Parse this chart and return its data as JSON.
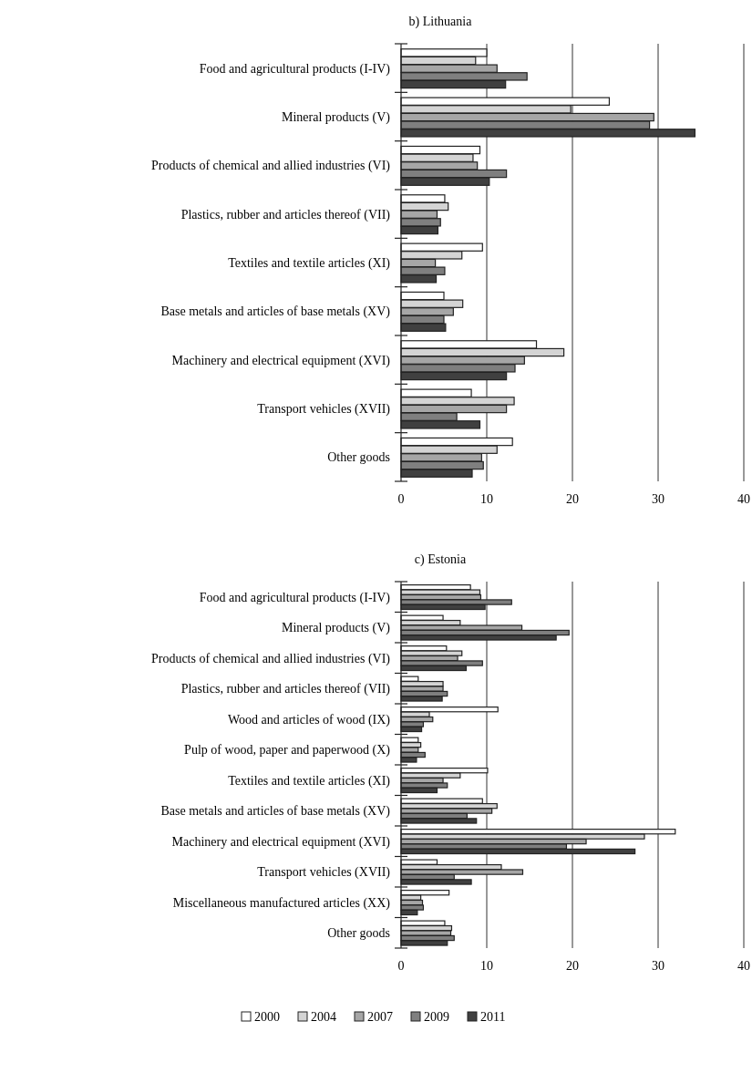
{
  "chart_data": [
    {
      "type": "bar",
      "orientation": "horizontal",
      "title": "b) Lithuania",
      "categories": [
        "Food and agricultural products (I-IV)",
        "Mineral products (V)",
        "Products of chemical and allied industries (VI)",
        "Plastics, rubber and articles thereof (VII)",
        "Textiles and textile articles (XI)",
        "Base metals and articles of base metals (XV)",
        "Machinery and electrical equipment (XVI)",
        "Transport vehicles (XVII)",
        "Other goods"
      ],
      "xlim": [
        0,
        40
      ],
      "xticks": [
        0,
        10,
        20,
        30,
        40
      ],
      "grid": "x",
      "legend": "bottom",
      "series": [
        {
          "name": "2000",
          "color": "#ffffff",
          "values": [
            10.0,
            24.3,
            9.2,
            5.1,
            9.5,
            5.0,
            15.8,
            8.2,
            13.0
          ]
        },
        {
          "name": "2004",
          "color": "#d4d4d4",
          "values": [
            8.7,
            19.8,
            8.4,
            5.5,
            7.1,
            7.2,
            19.0,
            13.2,
            11.2
          ]
        },
        {
          "name": "2007",
          "color": "#a6a6a6",
          "values": [
            11.2,
            29.5,
            8.9,
            4.2,
            4.0,
            6.1,
            14.4,
            12.3,
            9.4
          ]
        },
        {
          "name": "2009",
          "color": "#7f7f7f",
          "values": [
            14.7,
            29.0,
            12.3,
            4.6,
            5.1,
            5.0,
            13.3,
            6.5,
            9.6
          ]
        },
        {
          "name": "2011",
          "color": "#404040",
          "values": [
            12.2,
            34.3,
            10.3,
            4.3,
            4.1,
            5.2,
            12.3,
            9.2,
            8.3
          ]
        }
      ]
    },
    {
      "type": "bar",
      "orientation": "horizontal",
      "title": "c) Estonia",
      "categories": [
        "Food and agricultural products (I-IV)",
        "Mineral products (V)",
        "Products of chemical and allied industries (VI)",
        "Plastics, rubber and articles thereof (VII)",
        "Wood and articles of wood (IX)",
        "Pulp of wood, paper and paperwood (X)",
        "Textiles and textile articles (XI)",
        "Base metals and articles of base metals (XV)",
        "Machinery and electrical equipment (XVI)",
        "Transport vehicles (XVII)",
        "Miscellaneous manufactured articles (XX)",
        "Other goods"
      ],
      "xlim": [
        0,
        40
      ],
      "xticks": [
        0,
        10,
        20,
        30,
        40
      ],
      "grid": "x",
      "legend": "bottom",
      "series": [
        {
          "name": "2000",
          "color": "#ffffff",
          "values": [
            8.1,
            4.9,
            5.3,
            2.0,
            11.3,
            2.0,
            10.1,
            9.5,
            32.0,
            4.2,
            5.6,
            5.1
          ]
        },
        {
          "name": "2004",
          "color": "#d4d4d4",
          "values": [
            9.2,
            6.9,
            7.1,
            4.9,
            3.3,
            2.3,
            6.9,
            11.2,
            28.4,
            11.7,
            2.3,
            5.9
          ]
        },
        {
          "name": "2007",
          "color": "#a6a6a6",
          "values": [
            9.3,
            14.1,
            6.6,
            4.9,
            3.7,
            2.0,
            4.9,
            10.6,
            21.6,
            14.2,
            2.5,
            5.8
          ]
        },
        {
          "name": "2009",
          "color": "#7f7f7f",
          "values": [
            12.9,
            19.6,
            9.5,
            5.4,
            2.6,
            2.8,
            5.4,
            7.7,
            19.3,
            6.2,
            2.6,
            6.2
          ]
        },
        {
          "name": "2011",
          "color": "#404040",
          "values": [
            9.8,
            18.1,
            7.6,
            4.8,
            2.4,
            1.8,
            4.2,
            8.8,
            27.3,
            8.2,
            1.9,
            5.4
          ]
        }
      ]
    }
  ]
}
